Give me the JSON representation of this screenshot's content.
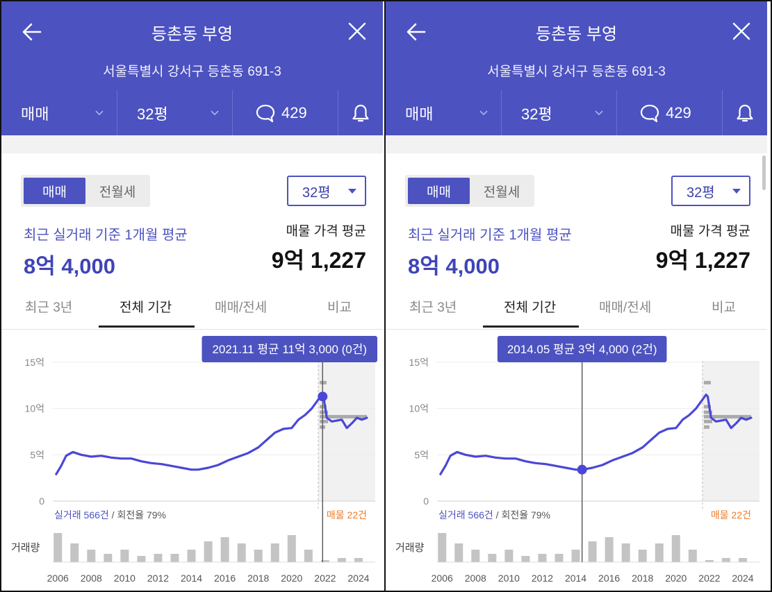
{
  "frame": {
    "background": "#ffffff",
    "border_color": "#111111"
  },
  "theme": {
    "accent": "#4c52c0",
    "line": "#4a47d8",
    "listing_orange": "#f07a2a",
    "bar_gray": "#c4c4c4"
  },
  "panels": [
    {
      "header": {
        "title": "등촌동 부영",
        "address": "서울특별시 강서구 등촌동 691-3",
        "back_icon": "arrow-left-icon",
        "close_icon": "close-icon",
        "tabs": {
          "deal_type": "매매",
          "size": "32평",
          "comment_count": "429",
          "comment_icon": "speech-bubble-icon",
          "bell_icon": "bell-icon"
        }
      },
      "body": {
        "segment": {
          "active": "매매",
          "inactive": "전월세"
        },
        "size_select": "32평",
        "recent_label": "최근 실거래 기준 1개월 평균",
        "recent_value": "8억 4,000",
        "listing_label": "매물 가격 평균",
        "listing_value": "9억 1,227",
        "period_tabs": [
          "최근 3년",
          "전체 기간",
          "매매/전세",
          "비교"
        ],
        "active_period_tab": 1
      },
      "chart_data": {
        "type": "line",
        "title": "",
        "xlabel": "",
        "ylabel": "",
        "ylim": [
          0,
          15
        ],
        "xlim": [
          2005.7,
          2025
        ],
        "y_ticks": [
          "15억",
          "10억",
          "5억",
          "0"
        ],
        "y_tick_values": [
          15,
          10,
          5,
          0
        ],
        "x_ticks": [
          "2006",
          "2008",
          "2010",
          "2012",
          "2014",
          "2016",
          "2018",
          "2020",
          "2022",
          "2024"
        ],
        "x_tick_values": [
          2006,
          2008,
          2010,
          2012,
          2014,
          2016,
          2018,
          2020,
          2022,
          2024
        ],
        "series": [
          {
            "x": [
              2005.9,
              2006.2,
              2006.5,
              2006.9,
              2007.4,
              2008.0,
              2008.6,
              2009.2,
              2009.8,
              2010.4,
              2011.0,
              2011.6,
              2012.2,
              2012.8,
              2013.4,
              2014.0,
              2014.4,
              2015.0,
              2015.6,
              2016.2,
              2016.8,
              2017.4,
              2018.0,
              2018.5,
              2019.0,
              2019.5,
              2020.0,
              2020.4,
              2020.8,
              2021.2,
              2021.6,
              2021.8,
              2021.9,
              2022.1,
              2022.4,
              2022.7,
              2023.0,
              2023.3,
              2023.6,
              2023.9,
              2024.2,
              2024.5
            ],
            "y": [
              2.9,
              3.8,
              4.9,
              5.3,
              5.0,
              4.8,
              4.9,
              4.7,
              4.6,
              4.6,
              4.3,
              4.1,
              4.0,
              3.8,
              3.6,
              3.4,
              3.4,
              3.6,
              3.9,
              4.4,
              4.8,
              5.2,
              5.8,
              6.6,
              7.4,
              7.8,
              7.9,
              8.8,
              9.3,
              10.0,
              11.0,
              11.5,
              11.3,
              9.0,
              8.6,
              8.7,
              8.8,
              7.9,
              8.4,
              9.0,
              8.8,
              9.0
            ]
          }
        ],
        "listing_range": {
          "min": 8.0,
          "max": 12.8,
          "avg": 9.12
        },
        "volume": {
          "label": "거래량",
          "years": [
            2006,
            2007,
            2008,
            2009,
            2010,
            2011,
            2012,
            2013,
            2014,
            2015,
            2016,
            2017,
            2018,
            2019,
            2020,
            2021,
            2022,
            2023,
            2024
          ],
          "counts": [
            14,
            9,
            6,
            4,
            6,
            3,
            4,
            4,
            6,
            10,
            12,
            9,
            6,
            9,
            13,
            6,
            1,
            2,
            2
          ]
        },
        "stats": {
          "count_text": "실거래 566건",
          "rate_text": "/ 회전율 79%",
          "listing_text": "매물 22건"
        },
        "tooltip": {
          "text": "2021.11 평균 11억 3,000 (0건)",
          "x": 2021.85,
          "y": 11.3
        }
      }
    },
    {
      "header": {
        "title": "등촌동 부영",
        "address": "서울특별시 강서구 등촌동 691-3",
        "back_icon": "arrow-left-icon",
        "close_icon": "close-icon",
        "tabs": {
          "deal_type": "매매",
          "size": "32평",
          "comment_count": "429",
          "comment_icon": "speech-bubble-icon",
          "bell_icon": "bell-icon"
        }
      },
      "body": {
        "segment": {
          "active": "매매",
          "inactive": "전월세"
        },
        "size_select": "32평",
        "recent_label": "최근 실거래 기준 1개월 평균",
        "recent_value": "8억 4,000",
        "listing_label": "매물 가격 평균",
        "listing_value": "9억 1,227",
        "period_tabs": [
          "최근 3년",
          "전체 기간",
          "매매/전세",
          "비교"
        ],
        "active_period_tab": 1
      },
      "chart_data": {
        "type": "line",
        "title": "",
        "xlabel": "",
        "ylabel": "",
        "ylim": [
          0,
          15
        ],
        "xlim": [
          2005.7,
          2025
        ],
        "y_ticks": [
          "15억",
          "10억",
          "5억",
          "0"
        ],
        "y_tick_values": [
          15,
          10,
          5,
          0
        ],
        "x_ticks": [
          "2006",
          "2008",
          "2010",
          "2012",
          "2014",
          "2016",
          "2018",
          "2020",
          "2022",
          "2024"
        ],
        "x_tick_values": [
          2006,
          2008,
          2010,
          2012,
          2014,
          2016,
          2018,
          2020,
          2022,
          2024
        ],
        "series": [
          {
            "x": [
              2005.9,
              2006.2,
              2006.5,
              2006.9,
              2007.4,
              2008.0,
              2008.6,
              2009.2,
              2009.8,
              2010.4,
              2011.0,
              2011.6,
              2012.2,
              2012.8,
              2013.4,
              2014.0,
              2014.4,
              2015.0,
              2015.6,
              2016.2,
              2016.8,
              2017.4,
              2018.0,
              2018.5,
              2019.0,
              2019.5,
              2020.0,
              2020.4,
              2020.8,
              2021.2,
              2021.6,
              2021.8,
              2021.9,
              2022.1,
              2022.4,
              2022.7,
              2023.0,
              2023.3,
              2023.6,
              2023.9,
              2024.2,
              2024.5
            ],
            "y": [
              2.9,
              3.8,
              4.9,
              5.3,
              5.0,
              4.8,
              4.9,
              4.7,
              4.6,
              4.6,
              4.3,
              4.1,
              4.0,
              3.8,
              3.6,
              3.4,
              3.4,
              3.6,
              3.9,
              4.4,
              4.8,
              5.2,
              5.8,
              6.6,
              7.4,
              7.8,
              7.9,
              8.8,
              9.3,
              10.0,
              11.0,
              11.5,
              11.3,
              9.0,
              8.6,
              8.7,
              8.8,
              7.9,
              8.4,
              9.0,
              8.8,
              9.0
            ]
          }
        ],
        "listing_range": {
          "min": 8.0,
          "max": 12.8,
          "avg": 9.12
        },
        "volume": {
          "label": "거래량",
          "years": [
            2006,
            2007,
            2008,
            2009,
            2010,
            2011,
            2012,
            2013,
            2014,
            2015,
            2016,
            2017,
            2018,
            2019,
            2020,
            2021,
            2022,
            2023,
            2024
          ],
          "counts": [
            14,
            9,
            6,
            4,
            6,
            3,
            4,
            4,
            6,
            10,
            12,
            9,
            6,
            9,
            13,
            6,
            1,
            2,
            2
          ]
        },
        "stats": {
          "count_text": "실거래 566건",
          "rate_text": "/ 회전율 79%",
          "listing_text": "매물 22건"
        },
        "tooltip": {
          "text": "2014.05 평균 3억 4,000 (2건)",
          "x": 2014.38,
          "y": 3.4
        }
      }
    }
  ]
}
